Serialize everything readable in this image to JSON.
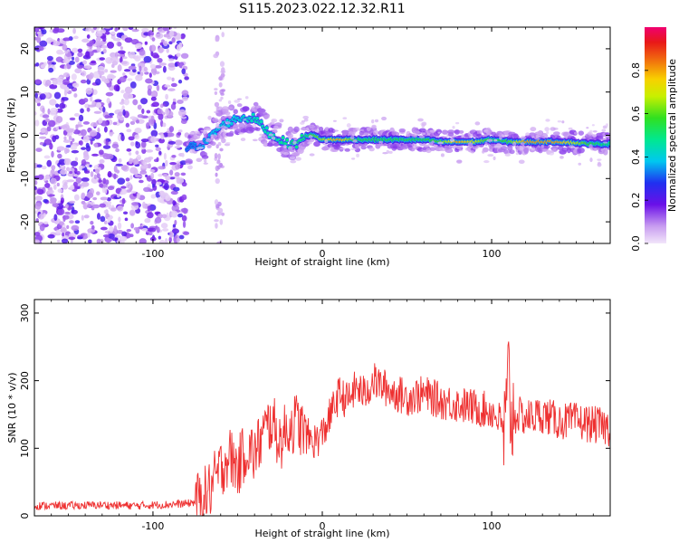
{
  "title": "S115.2023.022.12.32.R11",
  "colors": {
    "frame": "#000000",
    "snr_line": "#ee3030",
    "background": "#ffffff"
  },
  "chart_data": [
    {
      "type": "heatmap",
      "xlabel": "Height of straight line (km)",
      "ylabel": "Frequency (Hz)",
      "xlim": [
        -170,
        170
      ],
      "ylim": [
        -25,
        25
      ],
      "x_ticks": [
        -100,
        0,
        100
      ],
      "x_tick_labels": [
        "-100",
        "0",
        "100"
      ],
      "y_ticks": [
        -20,
        -10,
        0,
        10,
        20
      ],
      "y_tick_labels": [
        "-20",
        "-10",
        "0",
        "10",
        "20"
      ],
      "colorbar": {
        "label": "Normalized spectral amplitude",
        "range": [
          0,
          1
        ],
        "ticks": [
          0.0,
          0.2,
          0.4,
          0.6,
          0.8
        ],
        "tick_labels": [
          "0.0",
          "0.2",
          "0.4",
          "0.6",
          "0.8"
        ],
        "colormap": "rainbow (light purple to red/magenta)"
      },
      "ridge": {
        "x": [
          -80,
          -70,
          -60,
          -50,
          -40,
          -30,
          -20,
          -15,
          -10,
          -5,
          0,
          10,
          20,
          40,
          60,
          70,
          80,
          90,
          100,
          110,
          120,
          140,
          160,
          170
        ],
        "frequency": [
          -3,
          -2,
          2,
          4,
          4,
          0,
          -2,
          -2,
          0,
          0,
          -1,
          -1,
          -1,
          -1,
          -1,
          -1.5,
          -1.5,
          -1.5,
          -1,
          -1.5,
          -1.5,
          -1.5,
          -2,
          -2
        ],
        "amplitude": [
          0.3,
          0.35,
          0.4,
          0.4,
          0.45,
          0.45,
          0.5,
          0.5,
          0.5,
          0.6,
          0.65,
          0.8,
          0.55,
          0.55,
          0.55,
          0.6,
          0.8,
          0.7,
          0.55,
          0.6,
          0.8,
          0.8,
          0.55,
          0.5
        ]
      },
      "grid": false
    },
    {
      "type": "line",
      "xlabel": "Height of straight line (km)",
      "ylabel": "SNR (10 * v/v)",
      "xlim": [
        -170,
        170
      ],
      "ylim": [
        0,
        320
      ],
      "x_ticks": [
        -100,
        0,
        100
      ],
      "x_tick_labels": [
        "-100",
        "0",
        "100"
      ],
      "y_ticks": [
        0,
        100,
        200,
        300
      ],
      "y_tick_labels": [
        "0",
        "100",
        "200",
        "300"
      ],
      "series": [
        {
          "x": [
            -170,
            -150,
            -130,
            -110,
            -90,
            -80,
            -72,
            -66,
            -60,
            -55,
            -50,
            -45,
            -40,
            -35,
            -30,
            -25,
            -20,
            -15,
            -10,
            -5,
            0,
            5,
            10,
            15,
            20,
            25,
            30,
            40,
            50,
            60,
            70,
            80,
            90,
            100,
            105,
            108,
            110,
            112,
            115,
            120,
            130,
            140,
            150,
            160,
            170
          ],
          "values": [
            15,
            15,
            16,
            15,
            17,
            18,
            22,
            40,
            70,
            90,
            70,
            100,
            90,
            120,
            140,
            110,
            130,
            140,
            120,
            110,
            120,
            150,
            180,
            170,
            190,
            180,
            200,
            185,
            175,
            180,
            170,
            165,
            160,
            155,
            140,
            120,
            200,
            140,
            150,
            145,
            150,
            140,
            140,
            135,
            130
          ]
        }
      ],
      "grid": false
    }
  ]
}
